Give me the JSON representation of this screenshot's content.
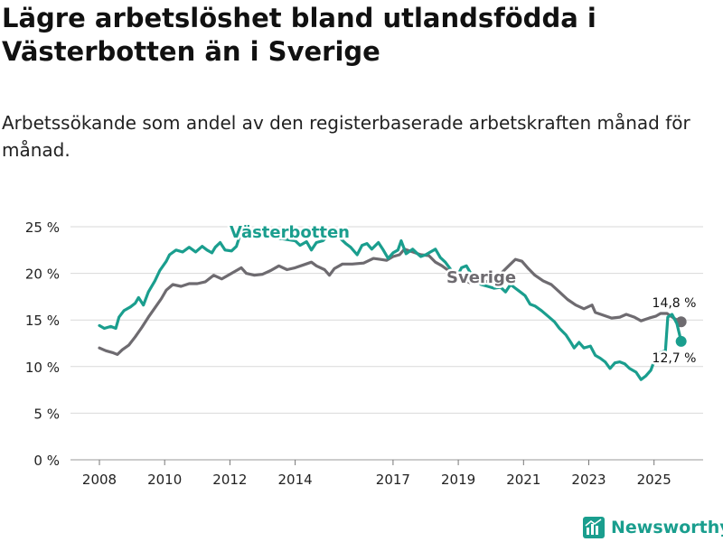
{
  "title": "Lägre arbetslöshet bland utlandsfödda i Västerbotten än i Sverige",
  "subtitle": "Arbetssökande som andel av den registerbaserade arbetskraften månad för månad.",
  "brand": "Newsworthy",
  "colors": {
    "vasterbotten": "#1a9e8e",
    "sverige": "#6e6b70",
    "grid": "#d9d9d9",
    "brand": "#1a9e8e"
  },
  "chart_data": {
    "type": "line",
    "ylim": [
      0,
      25
    ],
    "xlim": [
      2008.0,
      2026.5
    ],
    "yticks": [
      {
        "value": 0,
        "label": "0 %"
      },
      {
        "value": 5,
        "label": "5 %"
      },
      {
        "value": 10,
        "label": "10 %"
      },
      {
        "value": 15,
        "label": "15 %"
      },
      {
        "value": 20,
        "label": "20 %"
      },
      {
        "value": 25,
        "label": "25 %"
      }
    ],
    "xticks": [
      {
        "value": 2008,
        "label": "2008"
      },
      {
        "value": 2010,
        "label": "2010"
      },
      {
        "value": 2012,
        "label": "2012"
      },
      {
        "value": 2014,
        "label": "2014"
      },
      {
        "value": 2017,
        "label": "2017"
      },
      {
        "value": 2019,
        "label": "2019"
      },
      {
        "value": 2021,
        "label": "2021"
      },
      {
        "value": 2023,
        "label": "2023"
      },
      {
        "value": 2025,
        "label": "2025"
      }
    ],
    "series": [
      {
        "name": "Sverige",
        "label": "Sverige",
        "end_label": "14,8 %",
        "points": [
          [
            2008.0,
            12.0
          ],
          [
            2008.2,
            11.7
          ],
          [
            2008.4,
            11.5
          ],
          [
            2008.55,
            11.3
          ],
          [
            2008.7,
            11.8
          ],
          [
            2008.9,
            12.3
          ],
          [
            2009.1,
            13.2
          ],
          [
            2009.3,
            14.2
          ],
          [
            2009.5,
            15.3
          ],
          [
            2009.7,
            16.3
          ],
          [
            2009.9,
            17.3
          ],
          [
            2010.05,
            18.2
          ],
          [
            2010.25,
            18.8
          ],
          [
            2010.5,
            18.6
          ],
          [
            2010.75,
            18.9
          ],
          [
            2011.0,
            18.9
          ],
          [
            2011.25,
            19.1
          ],
          [
            2011.5,
            19.8
          ],
          [
            2011.75,
            19.4
          ],
          [
            2012.0,
            19.9
          ],
          [
            2012.2,
            20.3
          ],
          [
            2012.35,
            20.6
          ],
          [
            2012.5,
            20.0
          ],
          [
            2012.75,
            19.8
          ],
          [
            2013.0,
            19.9
          ],
          [
            2013.25,
            20.3
          ],
          [
            2013.5,
            20.8
          ],
          [
            2013.75,
            20.4
          ],
          [
            2014.0,
            20.6
          ],
          [
            2014.25,
            20.9
          ],
          [
            2014.5,
            21.2
          ],
          [
            2014.65,
            20.8
          ],
          [
            2014.9,
            20.4
          ],
          [
            2015.05,
            19.8
          ],
          [
            2015.2,
            20.5
          ],
          [
            2015.45,
            21.0
          ],
          [
            2015.75,
            21.0
          ],
          [
            2016.1,
            21.1
          ],
          [
            2016.4,
            21.6
          ],
          [
            2016.6,
            21.5
          ],
          [
            2016.8,
            21.4
          ],
          [
            2017.0,
            21.8
          ],
          [
            2017.2,
            22.0
          ],
          [
            2017.35,
            22.6
          ],
          [
            2017.6,
            22.3
          ],
          [
            2017.85,
            22.0
          ],
          [
            2018.1,
            21.9
          ],
          [
            2018.3,
            21.2
          ],
          [
            2018.5,
            20.8
          ],
          [
            2018.7,
            20.3
          ],
          [
            2018.9,
            19.9
          ],
          [
            2019.1,
            19.4
          ],
          [
            2019.35,
            19.0
          ],
          [
            2019.6,
            19.0
          ],
          [
            2019.8,
            19.1
          ],
          [
            2020.0,
            19.2
          ],
          [
            2020.2,
            19.6
          ],
          [
            2020.4,
            20.3
          ],
          [
            2020.6,
            21.0
          ],
          [
            2020.75,
            21.5
          ],
          [
            2020.95,
            21.3
          ],
          [
            2021.15,
            20.5
          ],
          [
            2021.35,
            19.8
          ],
          [
            2021.6,
            19.2
          ],
          [
            2021.85,
            18.8
          ],
          [
            2022.1,
            18.0
          ],
          [
            2022.35,
            17.2
          ],
          [
            2022.6,
            16.6
          ],
          [
            2022.85,
            16.2
          ],
          [
            2023.1,
            16.6
          ],
          [
            2023.2,
            15.8
          ],
          [
            2023.45,
            15.5
          ],
          [
            2023.7,
            15.2
          ],
          [
            2023.95,
            15.3
          ],
          [
            2024.15,
            15.6
          ],
          [
            2024.4,
            15.3
          ],
          [
            2024.6,
            14.9
          ],
          [
            2024.85,
            15.2
          ],
          [
            2025.05,
            15.4
          ],
          [
            2025.2,
            15.7
          ],
          [
            2025.4,
            15.7
          ],
          [
            2025.6,
            15.2
          ],
          [
            2025.75,
            14.9
          ],
          [
            2025.83,
            14.8
          ]
        ]
      },
      {
        "name": "Västerbotten",
        "label": "Västerbotten",
        "end_label": "12,7 %",
        "points": [
          [
            2008.0,
            14.4
          ],
          [
            2008.15,
            14.1
          ],
          [
            2008.35,
            14.3
          ],
          [
            2008.5,
            14.1
          ],
          [
            2008.6,
            15.3
          ],
          [
            2008.75,
            16.0
          ],
          [
            2008.95,
            16.4
          ],
          [
            2009.1,
            16.8
          ],
          [
            2009.2,
            17.4
          ],
          [
            2009.35,
            16.6
          ],
          [
            2009.5,
            18.0
          ],
          [
            2009.7,
            19.2
          ],
          [
            2009.85,
            20.3
          ],
          [
            2010.05,
            21.3
          ],
          [
            2010.15,
            22.0
          ],
          [
            2010.35,
            22.5
          ],
          [
            2010.55,
            22.3
          ],
          [
            2010.75,
            22.8
          ],
          [
            2010.95,
            22.3
          ],
          [
            2011.15,
            22.9
          ],
          [
            2011.3,
            22.5
          ],
          [
            2011.45,
            22.2
          ],
          [
            2011.55,
            22.8
          ],
          [
            2011.7,
            23.3
          ],
          [
            2011.85,
            22.5
          ],
          [
            2012.05,
            22.4
          ],
          [
            2012.2,
            22.9
          ],
          [
            2012.3,
            24.0
          ],
          [
            2012.5,
            24.3
          ],
          [
            2014.0,
            23.5
          ],
          [
            2014.15,
            23.0
          ],
          [
            2014.35,
            23.4
          ],
          [
            2014.5,
            22.5
          ],
          [
            2014.65,
            23.3
          ],
          [
            2014.85,
            23.5
          ],
          [
            2015.0,
            24.0
          ],
          [
            2015.25,
            24.2
          ],
          [
            2015.55,
            23.2
          ],
          [
            2015.7,
            22.8
          ],
          [
            2015.9,
            22.0
          ],
          [
            2016.05,
            23.0
          ],
          [
            2016.2,
            23.2
          ],
          [
            2016.35,
            22.6
          ],
          [
            2016.55,
            23.3
          ],
          [
            2016.7,
            22.5
          ],
          [
            2016.85,
            21.6
          ],
          [
            2017.0,
            22.2
          ],
          [
            2017.15,
            22.5
          ],
          [
            2017.25,
            23.5
          ],
          [
            2017.4,
            22.1
          ],
          [
            2017.6,
            22.6
          ],
          [
            2017.75,
            22.1
          ],
          [
            2017.85,
            21.8
          ],
          [
            2018.0,
            22.0
          ],
          [
            2018.15,
            22.3
          ],
          [
            2018.3,
            22.6
          ],
          [
            2018.45,
            21.7
          ],
          [
            2018.6,
            21.2
          ],
          [
            2018.75,
            20.5
          ],
          [
            2018.95,
            19.6
          ],
          [
            2019.1,
            20.6
          ],
          [
            2019.25,
            20.8
          ],
          [
            2019.45,
            19.6
          ],
          [
            2019.7,
            18.8
          ],
          [
            2019.9,
            18.6
          ],
          [
            2020.1,
            18.4
          ],
          [
            2020.3,
            18.5
          ],
          [
            2020.45,
            18.0
          ],
          [
            2020.6,
            18.8
          ],
          [
            2020.75,
            18.4
          ],
          [
            2020.9,
            18.0
          ],
          [
            2021.05,
            17.6
          ],
          [
            2021.2,
            16.7
          ],
          [
            2021.35,
            16.5
          ],
          [
            2021.55,
            16.0
          ],
          [
            2021.75,
            15.4
          ],
          [
            2021.95,
            14.8
          ],
          [
            2022.1,
            14.1
          ],
          [
            2022.3,
            13.4
          ],
          [
            2022.45,
            12.6
          ],
          [
            2022.55,
            12.0
          ],
          [
            2022.7,
            12.6
          ],
          [
            2022.85,
            12.0
          ],
          [
            2023.05,
            12.2
          ],
          [
            2023.2,
            11.2
          ],
          [
            2023.35,
            10.9
          ],
          [
            2023.5,
            10.5
          ],
          [
            2023.65,
            9.8
          ],
          [
            2023.8,
            10.4
          ],
          [
            2023.95,
            10.5
          ],
          [
            2024.1,
            10.3
          ],
          [
            2024.25,
            9.8
          ],
          [
            2024.45,
            9.4
          ],
          [
            2024.6,
            8.6
          ],
          [
            2024.75,
            9.0
          ],
          [
            2024.9,
            9.6
          ],
          [
            2025.05,
            11.0
          ],
          [
            2025.2,
            11.5
          ],
          [
            2025.35,
            11.7
          ],
          [
            2025.42,
            15.3
          ],
          [
            2025.55,
            15.6
          ],
          [
            2025.7,
            14.6
          ],
          [
            2025.83,
            12.7
          ]
        ]
      }
    ]
  }
}
